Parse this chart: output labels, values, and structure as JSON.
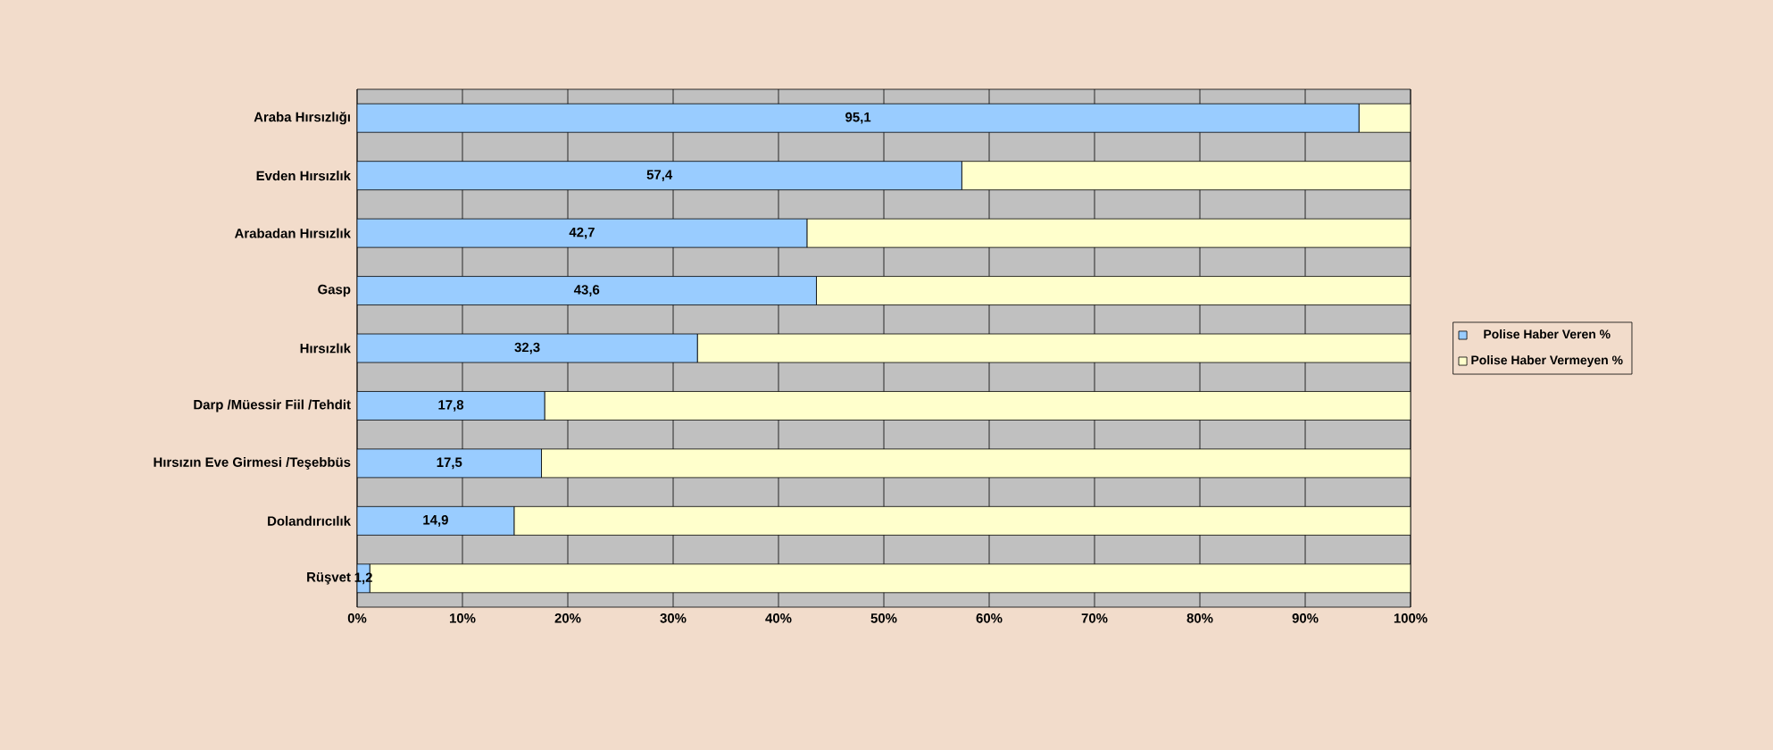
{
  "chart_data": {
    "type": "bar",
    "orientation": "horizontal",
    "stacked": true,
    "categories": [
      "Araba Hırsızlığı",
      "Evden Hırsızlık",
      "Arabadan Hırsızlık",
      "Gasp",
      "Hırsızlık",
      "Darp /Müessir Fiil /Tehdit",
      "Hırsızın Eve Girmesi /Teşebbüs",
      "Dolandırıcılık",
      "Rüşvet"
    ],
    "series": [
      {
        "name": "Polise Haber Veren %",
        "color": "#99ccff",
        "values": [
          95.1,
          57.4,
          42.7,
          43.6,
          32.3,
          17.8,
          17.5,
          14.9,
          1.2
        ],
        "value_labels": [
          "95,1",
          "57,4",
          "42,7",
          "43,6",
          "32,3",
          "17,8",
          "17,5",
          "14,9",
          "1,2"
        ]
      },
      {
        "name": "Polise Haber Vermeyen %",
        "color": "#ffffcc",
        "values": [
          4.9,
          42.6,
          57.3,
          56.4,
          67.7,
          82.2,
          82.5,
          85.1,
          98.8
        ]
      }
    ],
    "xlim": [
      0,
      100
    ],
    "xticks": [
      {
        "value": 0,
        "label": "0%"
      },
      {
        "value": 10,
        "label": "10%"
      },
      {
        "value": 20,
        "label": "20%"
      },
      {
        "value": 30,
        "label": "30%"
      },
      {
        "value": 40,
        "label": "40%"
      },
      {
        "value": 50,
        "label": "50%"
      },
      {
        "value": 60,
        "label": "60%"
      },
      {
        "value": 70,
        "label": "70%"
      },
      {
        "value": 80,
        "label": "80%"
      },
      {
        "value": 90,
        "label": "90%"
      },
      {
        "value": 100,
        "label": "100%"
      }
    ],
    "grid": "x",
    "legend": "right"
  }
}
